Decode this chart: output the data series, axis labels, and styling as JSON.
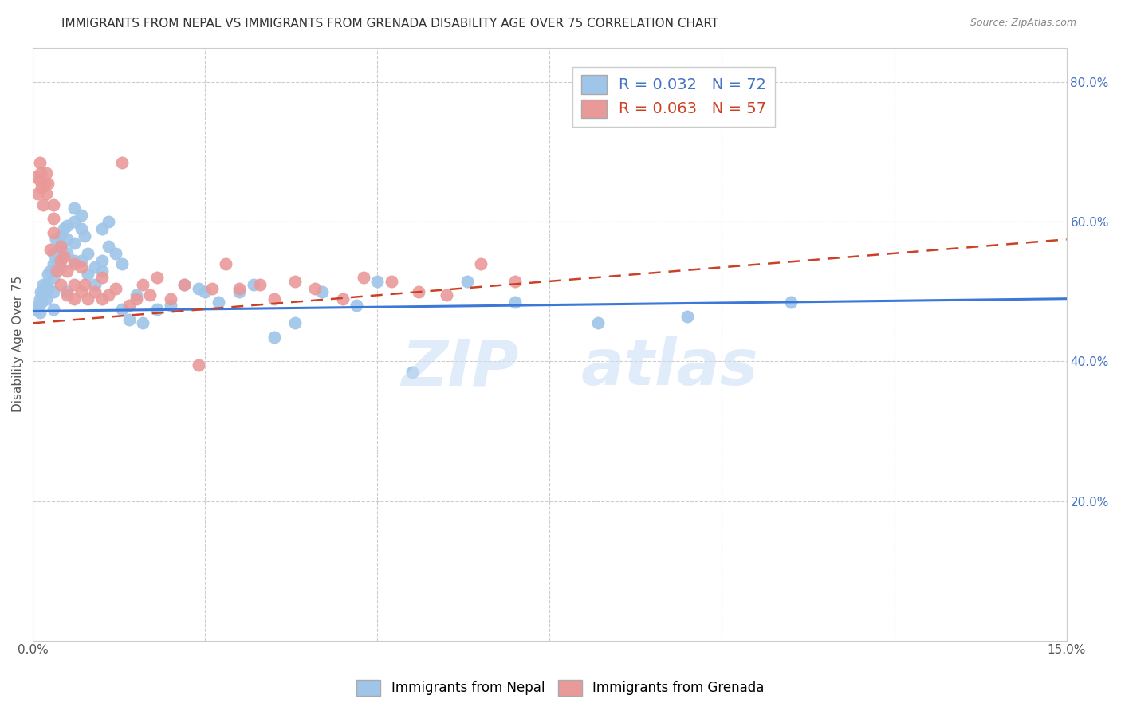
{
  "title": "IMMIGRANTS FROM NEPAL VS IMMIGRANTS FROM GRENADA DISABILITY AGE OVER 75 CORRELATION CHART",
  "source": "Source: ZipAtlas.com",
  "ylabel": "Disability Age Over 75",
  "xlim": [
    0.0,
    0.15
  ],
  "ylim": [
    0.0,
    0.85
  ],
  "yticks": [
    0.2,
    0.4,
    0.6,
    0.8
  ],
  "ytick_labels": [
    "20.0%",
    "40.0%",
    "60.0%",
    "80.0%"
  ],
  "xticks": [
    0.0,
    0.025,
    0.05,
    0.075,
    0.1,
    0.125,
    0.15
  ],
  "nepal_color": "#9fc5e8",
  "grenada_color": "#ea9999",
  "nepal_line_color": "#3c78d8",
  "grenada_line_color": "#cc4125",
  "nepal_R": 0.032,
  "nepal_N": 72,
  "grenada_R": 0.063,
  "grenada_N": 57,
  "legend_label_nepal": "Immigrants from Nepal",
  "legend_label_grenada": "Immigrants from Grenada",
  "nepal_trend_x0": 0.0,
  "nepal_trend_y0": 0.472,
  "nepal_trend_x1": 0.15,
  "nepal_trend_y1": 0.49,
  "grenada_trend_x0": 0.0,
  "grenada_trend_y0": 0.455,
  "grenada_trend_x1": 0.15,
  "grenada_trend_y1": 0.575,
  "nepal_x": [
    0.0005,
    0.0007,
    0.001,
    0.001,
    0.0012,
    0.0013,
    0.0015,
    0.0015,
    0.0017,
    0.002,
    0.002,
    0.0022,
    0.0022,
    0.0025,
    0.003,
    0.003,
    0.003,
    0.003,
    0.003,
    0.0033,
    0.0035,
    0.004,
    0.004,
    0.004,
    0.0042,
    0.0045,
    0.005,
    0.005,
    0.005,
    0.005,
    0.006,
    0.006,
    0.006,
    0.006,
    0.007,
    0.007,
    0.007,
    0.0075,
    0.008,
    0.008,
    0.009,
    0.009,
    0.01,
    0.01,
    0.01,
    0.011,
    0.011,
    0.012,
    0.013,
    0.013,
    0.014,
    0.015,
    0.016,
    0.018,
    0.02,
    0.022,
    0.024,
    0.025,
    0.027,
    0.03,
    0.032,
    0.035,
    0.038,
    0.042,
    0.047,
    0.05,
    0.055,
    0.063,
    0.07,
    0.082,
    0.095,
    0.11
  ],
  "nepal_y": [
    0.475,
    0.48,
    0.49,
    0.47,
    0.5,
    0.485,
    0.495,
    0.51,
    0.5,
    0.51,
    0.49,
    0.525,
    0.505,
    0.53,
    0.555,
    0.54,
    0.52,
    0.5,
    0.475,
    0.575,
    0.545,
    0.56,
    0.58,
    0.535,
    0.565,
    0.59,
    0.595,
    0.555,
    0.575,
    0.5,
    0.62,
    0.6,
    0.57,
    0.545,
    0.61,
    0.59,
    0.545,
    0.58,
    0.555,
    0.525,
    0.535,
    0.51,
    0.545,
    0.59,
    0.53,
    0.6,
    0.565,
    0.555,
    0.54,
    0.475,
    0.46,
    0.495,
    0.455,
    0.475,
    0.48,
    0.51,
    0.505,
    0.5,
    0.485,
    0.5,
    0.51,
    0.435,
    0.455,
    0.5,
    0.48,
    0.515,
    0.385,
    0.515,
    0.485,
    0.455,
    0.465,
    0.485
  ],
  "grenada_x": [
    0.0005,
    0.0007,
    0.001,
    0.001,
    0.0012,
    0.0013,
    0.0015,
    0.0017,
    0.002,
    0.002,
    0.0022,
    0.0025,
    0.003,
    0.003,
    0.003,
    0.0035,
    0.004,
    0.004,
    0.004,
    0.0045,
    0.005,
    0.005,
    0.006,
    0.006,
    0.006,
    0.007,
    0.007,
    0.0075,
    0.008,
    0.009,
    0.01,
    0.01,
    0.011,
    0.012,
    0.013,
    0.014,
    0.015,
    0.016,
    0.017,
    0.018,
    0.02,
    0.022,
    0.024,
    0.026,
    0.028,
    0.03,
    0.033,
    0.035,
    0.038,
    0.041,
    0.045,
    0.048,
    0.052,
    0.056,
    0.06,
    0.065,
    0.07
  ],
  "grenada_y": [
    0.665,
    0.64,
    0.685,
    0.66,
    0.67,
    0.65,
    0.625,
    0.655,
    0.64,
    0.67,
    0.655,
    0.56,
    0.625,
    0.605,
    0.585,
    0.53,
    0.565,
    0.545,
    0.51,
    0.55,
    0.53,
    0.495,
    0.54,
    0.51,
    0.49,
    0.535,
    0.5,
    0.51,
    0.49,
    0.5,
    0.52,
    0.49,
    0.495,
    0.505,
    0.685,
    0.48,
    0.49,
    0.51,
    0.495,
    0.52,
    0.49,
    0.51,
    0.395,
    0.505,
    0.54,
    0.505,
    0.51,
    0.49,
    0.515,
    0.505,
    0.49,
    0.52,
    0.515,
    0.5,
    0.495,
    0.54,
    0.515
  ]
}
